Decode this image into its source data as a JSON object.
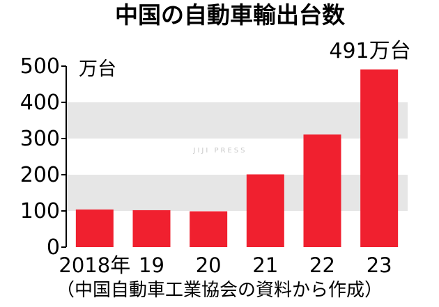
{
  "chart_data": {
    "type": "bar",
    "title": "中国の自動車輸出台数",
    "unit_label": "万台",
    "categories": [
      "2018年",
      "19",
      "20",
      "21",
      "22",
      "23"
    ],
    "values": [
      104,
      102,
      99,
      201,
      311,
      491
    ],
    "ylim": [
      0,
      500
    ],
    "yticks": [
      0,
      100,
      200,
      300,
      400,
      500
    ],
    "callout": "491万台",
    "source": "（中国自動車工業協会の資料から作成）",
    "watermark": "JIJI PRESS",
    "grid": "alternating bands",
    "colors": {
      "bar": "#f0202f",
      "band": "#e6e6e6",
      "text": "#000000"
    }
  }
}
